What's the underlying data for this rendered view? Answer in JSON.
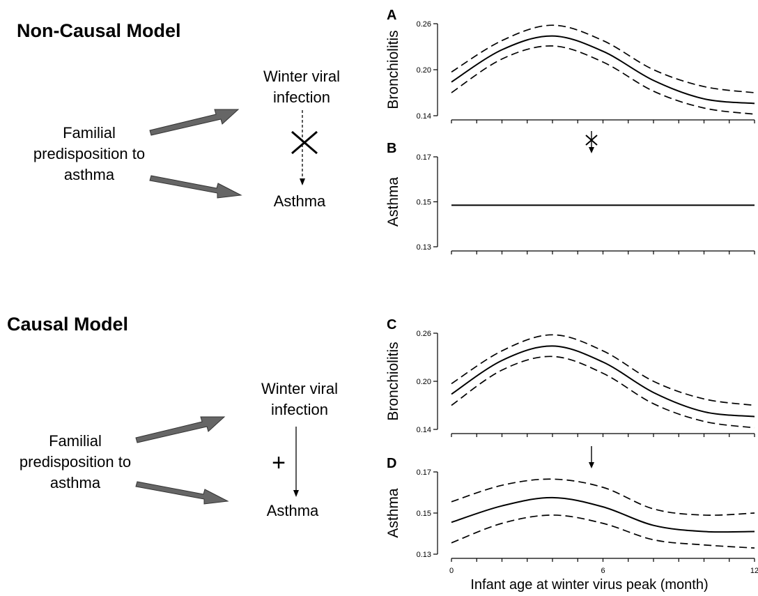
{
  "models": [
    {
      "title": "Non-Causal Model",
      "nodes": {
        "predisposition_line1": "Familial",
        "predisposition_line2": "predisposition to",
        "predisposition_line3": "asthma",
        "infection_line1": "Winter viral",
        "infection_line2": "infection",
        "outcome": "Asthma"
      },
      "link": "none",
      "link_icon": "cross-icon"
    },
    {
      "title": "Causal Model",
      "nodes": {
        "predisposition_line1": "Familial",
        "predisposition_line2": "predisposition to",
        "predisposition_line3": "asthma",
        "infection_line1": "Winter viral",
        "infection_line2": "infection",
        "outcome": "Asthma"
      },
      "link": "causal",
      "link_sign": "+"
    }
  ],
  "x_axis": {
    "label": "Infant age at winter virus peak (month)",
    "range": [
      0,
      12
    ],
    "tick_labels": [
      "0",
      "6",
      "12"
    ]
  },
  "chart_data": [
    {
      "panel": "A",
      "type": "line",
      "ylabel": "Bronchiolitis",
      "ylim": [
        0.14,
        0.26
      ],
      "ytick_labels": [
        "0.14",
        "0.20",
        "0.26"
      ],
      "x": [
        0,
        2,
        4,
        6,
        8,
        10,
        12
      ],
      "series": [
        {
          "style": "solid",
          "values": [
            0.184,
            0.226,
            0.244,
            0.224,
            0.186,
            0.162,
            0.156
          ]
        },
        {
          "style": "dashed",
          "values": [
            0.197,
            0.238,
            0.258,
            0.238,
            0.2,
            0.178,
            0.17
          ]
        },
        {
          "style": "dashed",
          "values": [
            0.17,
            0.214,
            0.231,
            0.21,
            0.172,
            0.15,
            0.142
          ]
        }
      ]
    },
    {
      "panel": "B",
      "type": "line",
      "ylabel": "Asthma",
      "ylim": [
        0.13,
        0.17
      ],
      "ytick_labels": [
        "0.13",
        "0.15",
        "0.17"
      ],
      "x": [
        0,
        12
      ],
      "series": [
        {
          "style": "solid",
          "values": [
            0.1485,
            0.1485
          ]
        }
      ],
      "annotation": "crossed-arrow"
    },
    {
      "panel": "C",
      "type": "line",
      "ylabel": "Bronchiolitis",
      "ylim": [
        0.14,
        0.26
      ],
      "ytick_labels": [
        "0.14",
        "0.20",
        "0.26"
      ],
      "x": [
        0,
        2,
        4,
        6,
        8,
        10,
        12
      ],
      "series": [
        {
          "style": "solid",
          "values": [
            0.184,
            0.226,
            0.244,
            0.224,
            0.186,
            0.162,
            0.156
          ]
        },
        {
          "style": "dashed",
          "values": [
            0.197,
            0.238,
            0.258,
            0.238,
            0.2,
            0.178,
            0.17
          ]
        },
        {
          "style": "dashed",
          "values": [
            0.17,
            0.214,
            0.231,
            0.21,
            0.172,
            0.15,
            0.142
          ]
        }
      ]
    },
    {
      "panel": "D",
      "type": "line",
      "ylabel": "Asthma",
      "ylim": [
        0.13,
        0.17
      ],
      "ytick_labels": [
        "0.13",
        "0.15",
        "0.17"
      ],
      "x": [
        0,
        2,
        4,
        6,
        8,
        10,
        12
      ],
      "series": [
        {
          "style": "solid",
          "values": [
            0.1455,
            0.1535,
            0.1575,
            0.153,
            0.144,
            0.141,
            0.141
          ]
        },
        {
          "style": "dashed",
          "values": [
            0.1555,
            0.1635,
            0.1665,
            0.1625,
            0.152,
            0.149,
            0.15
          ]
        },
        {
          "style": "dashed",
          "values": [
            0.1355,
            0.145,
            0.149,
            0.145,
            0.137,
            0.1345,
            0.133
          ]
        }
      ],
      "annotation": "arrow"
    }
  ]
}
